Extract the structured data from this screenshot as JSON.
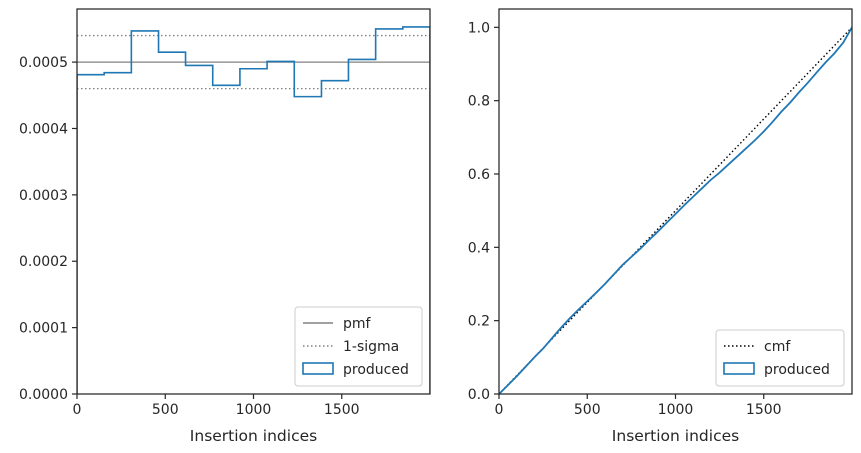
{
  "chart_data": [
    {
      "type": "line",
      "step": true,
      "xlabel": "Insertion indices",
      "ylabel": "",
      "xlim": [
        0,
        2000
      ],
      "ylim": [
        0,
        0.00058
      ],
      "xticks": [
        0,
        500,
        1000,
        1500
      ],
      "xtick_labels": [
        "0",
        "500",
        "1000",
        "1500"
      ],
      "yticks": [
        0,
        0.0001,
        0.0002,
        0.0003,
        0.0004,
        0.0005
      ],
      "ytick_labels": [
        "0.0000",
        "0.0001",
        "0.0002",
        "0.0003",
        "0.0004",
        "0.0005"
      ],
      "grid": false,
      "legend_position": "lower-right",
      "reference_lines": [
        {
          "name": "pmf",
          "y": 0.0005,
          "style": "solid",
          "color": "#808080"
        },
        {
          "name": "1-sigma",
          "y": 0.00054,
          "style": "dotted",
          "color": "#808080"
        },
        {
          "name": "1-sigma",
          "y": 0.00046,
          "style": "dotted",
          "color": "#808080"
        }
      ],
      "series": [
        {
          "name": "produced",
          "color": "#1f77b4",
          "bin_edges": [
            0,
            154,
            308,
            462,
            615,
            769,
            923,
            1077,
            1231,
            1385,
            1538,
            1692,
            1846,
            2000
          ],
          "values": [
            0.000481,
            0.000484,
            0.000547,
            0.000515,
            0.000495,
            0.000465,
            0.00049,
            0.000501,
            0.000448,
            0.000472,
            0.000504,
            0.00055,
            0.000553
          ]
        }
      ],
      "legend": [
        "pmf",
        "1-sigma",
        "produced"
      ]
    },
    {
      "type": "line",
      "xlabel": "Insertion indices",
      "ylabel": "",
      "xlim": [
        0,
        2000
      ],
      "ylim": [
        0,
        1.05
      ],
      "xticks": [
        0,
        500,
        1000,
        1500
      ],
      "xtick_labels": [
        "0",
        "500",
        "1000",
        "1500"
      ],
      "yticks": [
        0,
        0.2,
        0.4,
        0.6,
        0.8,
        1.0
      ],
      "ytick_labels": [
        "0.0",
        "0.2",
        "0.4",
        "0.6",
        "0.8",
        "1.0"
      ],
      "grid": false,
      "legend_position": "lower-right",
      "series": [
        {
          "name": "cmf",
          "style": "dotted",
          "color": "#000000",
          "x": [
            0,
            2000
          ],
          "y": [
            0,
            1.0
          ]
        },
        {
          "name": "produced",
          "style": "solid",
          "color": "#1f77b4",
          "x": [
            0,
            50,
            100,
            150,
            200,
            250,
            300,
            350,
            400,
            450,
            500,
            550,
            600,
            650,
            700,
            750,
            800,
            850,
            900,
            950,
            1000,
            1050,
            1100,
            1150,
            1200,
            1250,
            1300,
            1350,
            1400,
            1450,
            1500,
            1550,
            1600,
            1650,
            1700,
            1750,
            1800,
            1850,
            1900,
            1950,
            2000
          ],
          "y": [
            0,
            0.024,
            0.048,
            0.074,
            0.1,
            0.124,
            0.152,
            0.18,
            0.206,
            0.23,
            0.253,
            0.276,
            0.3,
            0.326,
            0.352,
            0.374,
            0.396,
            0.42,
            0.443,
            0.467,
            0.491,
            0.515,
            0.538,
            0.561,
            0.584,
            0.604,
            0.626,
            0.648,
            0.67,
            0.692,
            0.716,
            0.742,
            0.77,
            0.795,
            0.823,
            0.849,
            0.877,
            0.904,
            0.929,
            0.958,
            1.0
          ]
        }
      ],
      "legend": [
        "cmf",
        "produced"
      ]
    }
  ]
}
